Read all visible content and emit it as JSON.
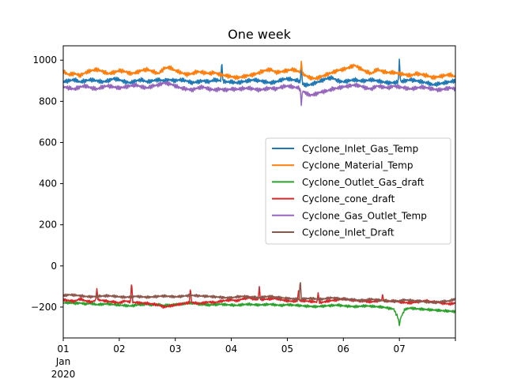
{
  "chart_data": {
    "type": "line",
    "title": "One week",
    "xlabel": "",
    "ylabel": "",
    "x_ticks": [
      "01",
      "02",
      "03",
      "04",
      "05",
      "06",
      "07"
    ],
    "x_tick_sublabels": [
      "Jan",
      "2020"
    ],
    "x_range_days": [
      0,
      7
    ],
    "ylim": [
      -350,
      1070
    ],
    "y_ticks": [
      -200,
      0,
      200,
      400,
      600,
      800,
      1000
    ],
    "grid": false,
    "legend": "center-right",
    "series": [
      {
        "name": "Cyclone_Inlet_Gas_Temp",
        "color": "#1f77b4",
        "base": [
          895,
          900,
          905,
          895,
          900,
          905,
          900,
          895,
          900,
          910,
          905,
          895,
          890,
          900,
          905,
          895,
          900,
          905,
          900,
          905,
          900,
          905,
          900,
          890,
          895,
          900,
          895,
          905,
          900,
          895,
          895,
          890,
          895,
          900,
          905,
          900,
          895,
          890,
          895,
          905,
          910,
          905,
          900,
          880,
          880,
          890,
          900,
          910,
          915,
          900,
          895,
          900,
          905,
          900,
          900,
          905,
          900,
          895,
          890,
          890,
          895,
          900,
          905,
          900,
          895,
          890,
          880,
          885,
          890,
          895,
          900
        ],
        "spikes": [
          [
            2.83,
            995
          ],
          [
            4.25,
            980
          ],
          [
            6.0,
            1005
          ]
        ]
      },
      {
        "name": "Cyclone_Material_Temp",
        "color": "#ff7f0e",
        "base": [
          945,
          930,
          935,
          925,
          940,
          950,
          955,
          945,
          935,
          940,
          950,
          945,
          935,
          940,
          950,
          955,
          945,
          935,
          960,
          965,
          950,
          940,
          930,
          935,
          945,
          940,
          935,
          940,
          930,
          925,
          920,
          915,
          920,
          925,
          930,
          940,
          950,
          955,
          940,
          945,
          950,
          955,
          945,
          930,
          915,
          910,
          920,
          930,
          940,
          950,
          955,
          965,
          975,
          960,
          945,
          935,
          955,
          945,
          940,
          940,
          935,
          930,
          925,
          935,
          930,
          925,
          915,
          920,
          925,
          930,
          920
        ],
        "spikes": [
          [
            4.25,
            995
          ]
        ]
      },
      {
        "name": "Cyclone_Outlet_Gas_draft",
        "color": "#2ca02c",
        "base": [
          -180,
          -178,
          -182,
          -180,
          -185,
          -182,
          -188,
          -186,
          -184,
          -188,
          -190,
          -192,
          -195,
          -190,
          -188,
          -186,
          -190,
          -188,
          -192,
          -190,
          -188,
          -186,
          -182,
          -180,
          -185,
          -188,
          -190,
          -188,
          -186,
          -188,
          -190,
          -192,
          -188,
          -186,
          -188,
          -190,
          -188,
          -186,
          -190,
          -192,
          -188,
          -190,
          -192,
          -195,
          -196,
          -198,
          -196,
          -194,
          -192,
          -190,
          -194,
          -196,
          -198,
          -196,
          -194,
          -196,
          -198,
          -200,
          -205,
          -210,
          -265,
          -210,
          -205,
          -208,
          -210,
          -212,
          -214,
          -216,
          -218,
          -220,
          -222
        ],
        "spikes": [
          [
            6.0,
            -290
          ]
        ]
      },
      {
        "name": "Cyclone_cone_draft",
        "color": "#d62728",
        "base": [
          -165,
          -168,
          -172,
          -160,
          -170,
          -175,
          -165,
          -168,
          -172,
          -175,
          -180,
          -170,
          -175,
          -178,
          -180,
          -182,
          -185,
          -190,
          -200,
          -195,
          -190,
          -185,
          -180,
          -178,
          -182,
          -180,
          -175,
          -178,
          -172,
          -168,
          -165,
          -170,
          -160,
          -155,
          -160,
          -165,
          -162,
          -160,
          -158,
          -165,
          -170,
          -172,
          -168,
          -170,
          -172,
          -175,
          -178,
          -172,
          -168,
          -165,
          -160,
          -165,
          -168,
          -170,
          -172,
          -175,
          -170,
          -168,
          -172,
          -170,
          -175,
          -178,
          -180,
          -175,
          -172,
          -170,
          -175,
          -178,
          -182,
          -185,
          -180
        ],
        "spikes": [
          [
            0.6,
            -110
          ],
          [
            1.22,
            -75
          ],
          [
            2.27,
            -105
          ],
          [
            3.5,
            -100
          ],
          [
            4.2,
            -120
          ],
          [
            4.55,
            -130
          ],
          [
            5.7,
            -140
          ]
        ]
      },
      {
        "name": "Cyclone_Gas_Outlet_Temp",
        "color": "#9467bd",
        "base": [
          870,
          865,
          860,
          870,
          875,
          865,
          860,
          870,
          875,
          870,
          865,
          870,
          875,
          880,
          870,
          865,
          875,
          880,
          890,
          885,
          875,
          865,
          860,
          855,
          865,
          870,
          860,
          855,
          860,
          855,
          860,
          858,
          862,
          865,
          860,
          855,
          860,
          865,
          860,
          870,
          875,
          870,
          865,
          845,
          830,
          835,
          845,
          850,
          860,
          865,
          870,
          875,
          880,
          875,
          865,
          860,
          875,
          870,
          865,
          875,
          870,
          865,
          860,
          865,
          870,
          865,
          860,
          855,
          860,
          865,
          860
        ],
        "spikes": [
          [
            4.25,
            780
          ]
        ]
      },
      {
        "name": "Cyclone_Inlet_Draft",
        "color": "#8c564b",
        "base": [
          -145,
          -140,
          -142,
          -145,
          -148,
          -150,
          -148,
          -146,
          -145,
          -147,
          -150,
          -152,
          -150,
          -148,
          -150,
          -152,
          -150,
          -148,
          -146,
          -148,
          -150,
          -148,
          -145,
          -143,
          -145,
          -147,
          -148,
          -150,
          -152,
          -155,
          -155,
          -150,
          -148,
          -150,
          -152,
          -155,
          -150,
          -148,
          -152,
          -155,
          -158,
          -160,
          -162,
          -160,
          -158,
          -160,
          -162,
          -158,
          -155,
          -158,
          -160,
          -162,
          -165,
          -168,
          -165,
          -162,
          -165,
          -168,
          -170,
          -172,
          -170,
          -165,
          -168,
          -170,
          -172,
          -175,
          -178,
          -175,
          -172,
          -170,
          -160
        ],
        "spikes": [
          [
            4.23,
            -65
          ]
        ]
      }
    ]
  }
}
